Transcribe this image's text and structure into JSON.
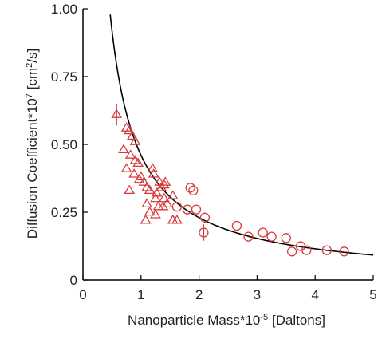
{
  "chart_data": {
    "type": "scatter",
    "xlabel_main": "Nanoparticle Mass*10",
    "xlabel_exp": "-5",
    "xlabel_unit": " [Daltons]",
    "ylabel_main": "Diffusion Coefficient*10",
    "ylabel_exp": "7",
    "ylabel_unit_a": " [cm",
    "ylabel_unit_exp": "2",
    "ylabel_unit_b": "/s]",
    "xlim": [
      0,
      5
    ],
    "ylim": [
      0,
      1.0
    ],
    "x_ticks": [
      0,
      1,
      2,
      3,
      4,
      5
    ],
    "x_tick_labels": [
      "0",
      "1",
      "2",
      "3",
      "4",
      "5"
    ],
    "y_ticks": [
      0,
      0.25,
      0.5,
      0.75,
      1.0
    ],
    "y_tick_labels": [
      "0",
      "0.25",
      "0.50",
      "0.75",
      "1.00"
    ],
    "grid": false,
    "colors": {
      "markers": "#d93a3a",
      "curve": "#000000",
      "axes": "#000000"
    },
    "fit_curve": {
      "label": "",
      "k": 0.46,
      "x_start": 0.47,
      "x_end": 5.0
    },
    "series": [
      {
        "marker": "triangle",
        "points": [
          [
            0.75,
            0.56
          ],
          [
            0.8,
            0.55
          ],
          [
            0.85,
            0.53
          ],
          [
            0.9,
            0.51
          ],
          [
            0.7,
            0.48
          ],
          [
            0.82,
            0.46
          ],
          [
            0.9,
            0.44
          ],
          [
            0.95,
            0.43
          ],
          [
            0.75,
            0.41
          ],
          [
            0.88,
            0.39
          ],
          [
            0.97,
            0.37
          ],
          [
            1.05,
            0.36
          ],
          [
            0.8,
            0.33
          ],
          [
            1.0,
            0.38
          ],
          [
            1.1,
            0.34
          ],
          [
            1.2,
            0.41
          ],
          [
            1.22,
            0.39
          ],
          [
            1.15,
            0.33
          ],
          [
            1.27,
            0.32
          ],
          [
            1.32,
            0.36
          ],
          [
            1.35,
            0.34
          ],
          [
            1.4,
            0.35
          ],
          [
            1.42,
            0.36
          ],
          [
            1.25,
            0.3
          ],
          [
            1.4,
            0.3
          ],
          [
            1.1,
            0.28
          ],
          [
            1.3,
            0.27
          ],
          [
            1.38,
            0.27
          ],
          [
            1.45,
            0.28
          ],
          [
            1.55,
            0.31
          ],
          [
            1.15,
            0.25
          ],
          [
            1.25,
            0.24
          ],
          [
            1.08,
            0.22
          ],
          [
            1.55,
            0.22
          ],
          [
            1.62,
            0.22
          ]
        ]
      },
      {
        "marker": "circle",
        "points": [
          [
            1.85,
            0.34
          ],
          [
            1.9,
            0.33
          ],
          [
            1.95,
            0.26
          ],
          [
            2.1,
            0.23
          ],
          [
            1.8,
            0.26
          ],
          [
            1.62,
            0.27
          ],
          [
            2.65,
            0.2
          ],
          [
            2.85,
            0.16
          ],
          [
            3.1,
            0.175
          ],
          [
            3.25,
            0.16
          ],
          [
            3.5,
            0.155
          ],
          [
            3.6,
            0.105
          ],
          [
            3.75,
            0.125
          ],
          [
            3.85,
            0.11
          ],
          [
            4.2,
            0.11
          ],
          [
            4.5,
            0.105
          ]
        ]
      }
    ],
    "error_bars": [
      {
        "x": 0.58,
        "y": 0.61,
        "yerr": 0.04,
        "marker": "triangle"
      },
      {
        "x": 2.08,
        "y": 0.175,
        "yerr": 0.03,
        "marker": "circle"
      }
    ]
  }
}
